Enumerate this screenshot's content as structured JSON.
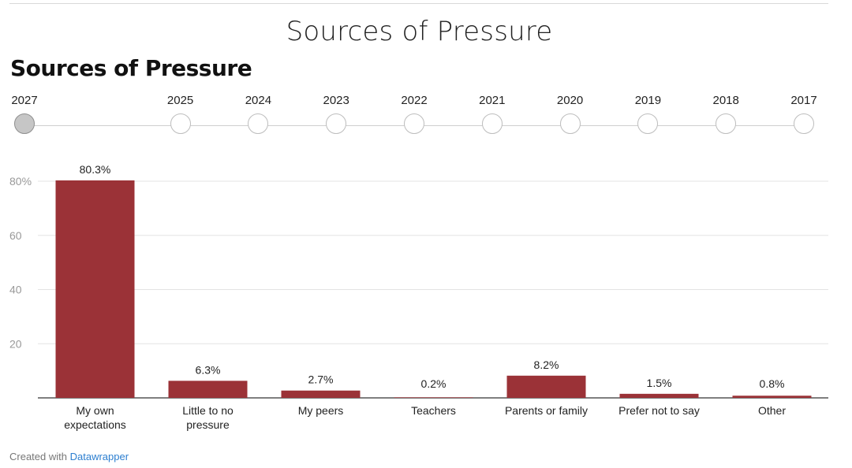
{
  "page": {
    "title": "Sources of Pressure"
  },
  "timeline": {
    "years": [
      "2027",
      "2025",
      "2024",
      "2023",
      "2022",
      "2021",
      "2020",
      "2019",
      "2018",
      "2017"
    ],
    "selected": "2027"
  },
  "chart_data": {
    "type": "bar",
    "title": "Sources of Pressure",
    "categories": [
      [
        "My own",
        "expectations"
      ],
      [
        "Little to no",
        "pressure"
      ],
      [
        "My peers"
      ],
      [
        "Teachers"
      ],
      [
        "Parents or family"
      ],
      [
        "Prefer not to say"
      ],
      [
        "Other"
      ]
    ],
    "values": [
      80.3,
      6.3,
      2.7,
      0.2,
      8.2,
      1.5,
      0.8
    ],
    "data_labels": [
      "80.3%",
      "6.3%",
      "2.7%",
      "0.2%",
      "8.2%",
      "1.5%",
      "0.8%"
    ],
    "ylim": [
      0,
      80
    ],
    "yticks": [
      20,
      40,
      60,
      80
    ],
    "ytick_labels": [
      "20",
      "40",
      "60",
      "80%"
    ],
    "xlabel": "",
    "ylabel": "",
    "grid": true,
    "bar_color": "#9b3237"
  },
  "footer": {
    "prefix": "Created with",
    "brand": "Datawrapper"
  }
}
